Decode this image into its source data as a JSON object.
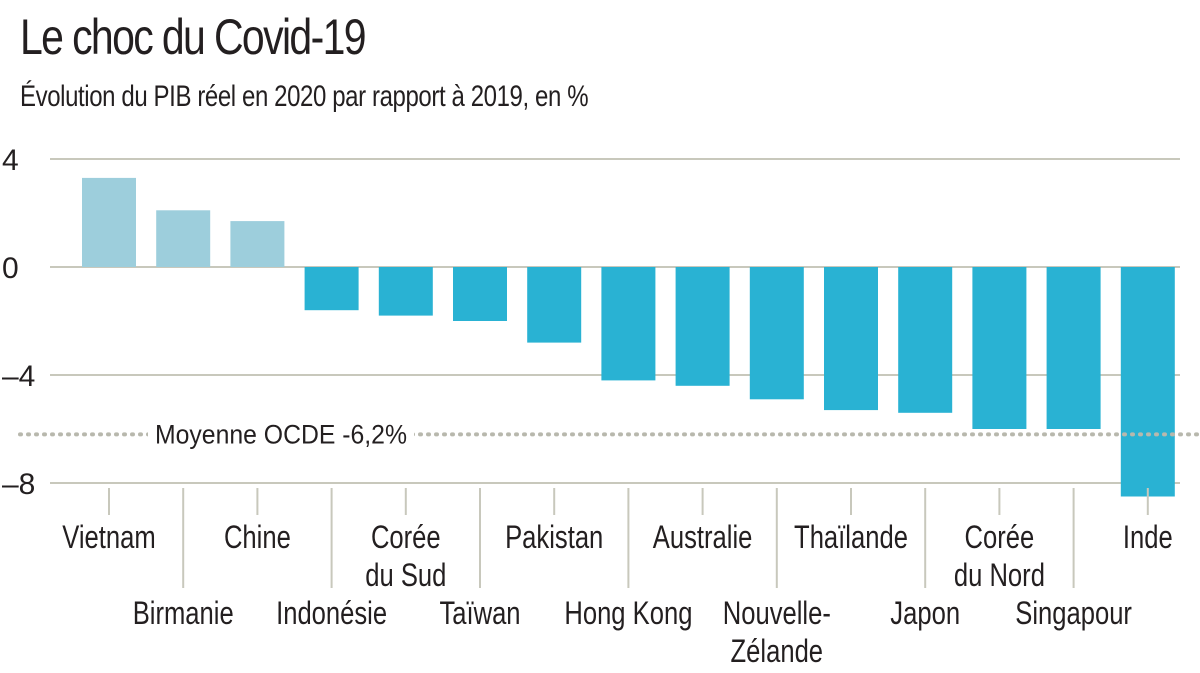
{
  "chart_data": {
    "type": "bar",
    "title": "Le choc du Covid-19",
    "subtitle": "Évolution du PIB réel en 2020 par rapport à 2019, en %",
    "categories": [
      "Vietnam",
      "Birmanie",
      "Chine",
      "Indonésie",
      "Corée du Sud",
      "Taïwan",
      "Pakistan",
      "Hong Kong",
      "Australie",
      "Nouvelle-Zélande",
      "Thaïlande",
      "Japon",
      "Corée du Nord",
      "Singapour",
      "Inde"
    ],
    "category_lines": [
      [
        "Vietnam"
      ],
      [
        "Birmanie"
      ],
      [
        "Chine"
      ],
      [
        "Indonésie"
      ],
      [
        "Corée",
        "du Sud"
      ],
      [
        "Taïwan"
      ],
      [
        "Pakistan"
      ],
      [
        "Hong Kong"
      ],
      [
        "Australie"
      ],
      [
        "Nouvelle-",
        "Zélande"
      ],
      [
        "Thaïlande"
      ],
      [
        "Japon"
      ],
      [
        "Corée",
        "du Nord"
      ],
      [
        "Singapour"
      ],
      [
        "Inde"
      ]
    ],
    "values": [
      3.3,
      2.1,
      1.7,
      -1.6,
      -1.8,
      -2.0,
      -2.8,
      -4.2,
      -4.4,
      -4.9,
      -5.3,
      -5.4,
      -6.0,
      -6.0,
      -8.5
    ],
    "yticks": [
      4,
      0,
      -4,
      -8
    ],
    "ytick_labels": [
      "4",
      "0",
      "–4",
      "–8"
    ],
    "ylim": [
      -8.5,
      4
    ],
    "grid": true,
    "reference_line": {
      "value": -6.2,
      "label": "Moyenne OCDE -6,2%"
    },
    "colors": {
      "positive": "#9dcedc",
      "negative": "#29b2d3",
      "grid": "#c8c8bc",
      "reference": "#b8b8ad",
      "text": "#231f20"
    }
  }
}
